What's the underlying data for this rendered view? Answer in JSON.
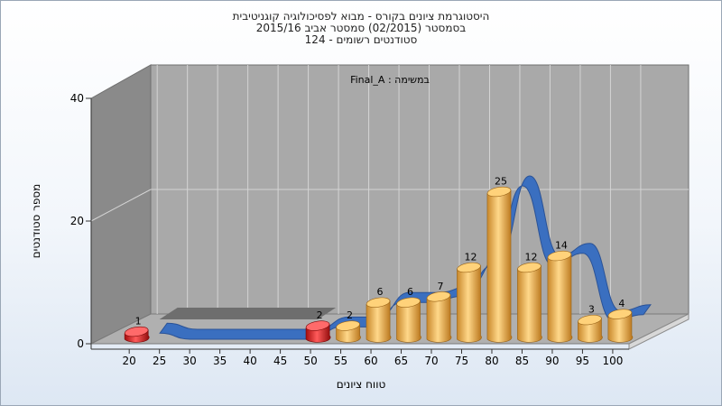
{
  "title": {
    "line1": "היסטוגרמת ציונים בקורס - מבוא לפסיכולוגיה קוגניטיבית",
    "line2": "בסמסטר  (02/2015)  סמסטר אביב 2015/16",
    "line3": "סטודנטים רשומים - 124"
  },
  "chart_data": {
    "type": "bar",
    "subtype": "3d-cylinder-histogram-with-ribbon",
    "annotation": "Final_A : במשימה",
    "xlabel": "טווח ציונים",
    "ylabel": "מספר סטודנטים",
    "categories": [
      "20",
      "25",
      "30",
      "35",
      "40",
      "45",
      "50",
      "55",
      "60",
      "65",
      "70",
      "75",
      "80",
      "85",
      "90",
      "95",
      "100"
    ],
    "values": [
      1,
      0,
      0,
      0,
      0,
      0,
      2,
      2,
      6,
      6,
      7,
      12,
      25,
      12,
      14,
      3,
      4
    ],
    "yticks": [
      "0",
      "20",
      "40"
    ],
    "ylim": [
      0,
      40
    ],
    "grid": true,
    "colors": {
      "low_bars": "#d41616",
      "bars": "#e8a83a",
      "ribbon": "#3a6fc0",
      "plot_back": "#a9a9a9",
      "side_wall": "#8a8a8a",
      "floor": "#b0b0b0"
    }
  }
}
